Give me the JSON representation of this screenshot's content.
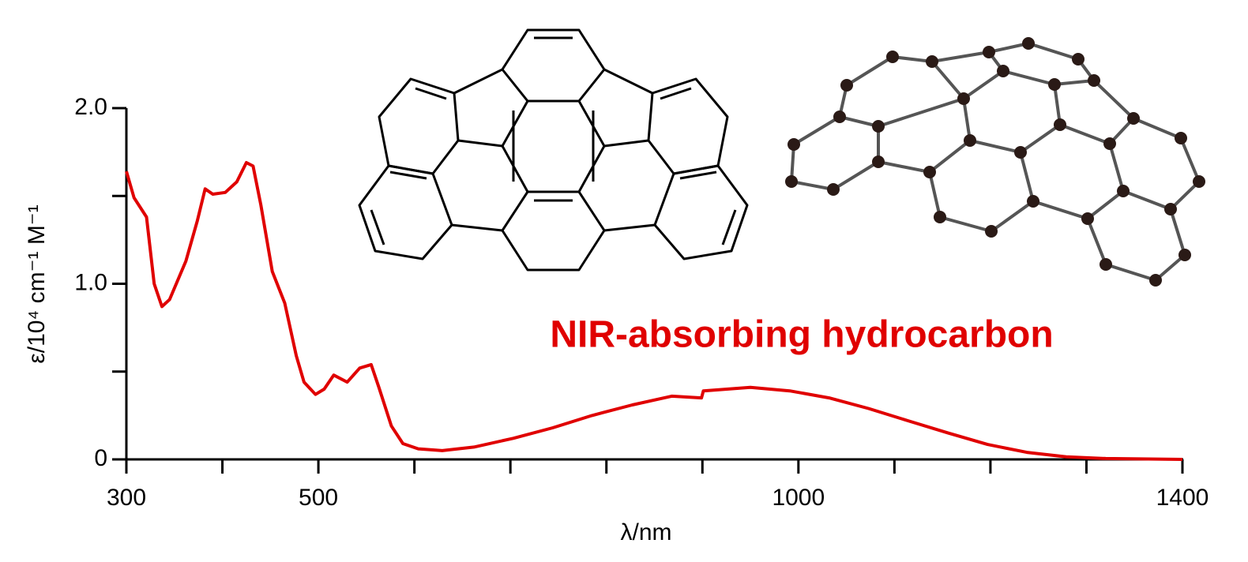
{
  "chart_data": {
    "type": "line",
    "annotation": "NIR-absorbing hydrocarbon",
    "x_label": "λ/nm",
    "y_label": "ε/10⁴ cm⁻¹ M⁻¹",
    "x": [
      300,
      308,
      321,
      329,
      337,
      345,
      362,
      374,
      382,
      390,
      403,
      415,
      425,
      432,
      440,
      452,
      465,
      477,
      485,
      497,
      506,
      516,
      530,
      543,
      555,
      563,
      576,
      588,
      604,
      629,
      662,
      703,
      744,
      785,
      827,
      868,
      899,
      901,
      950,
      991,
      1032,
      1073,
      1114,
      1156,
      1197,
      1238,
      1279,
      1320,
      1400
    ],
    "values": [
      1.64,
      1.49,
      1.38,
      1.0,
      0.87,
      0.91,
      1.13,
      1.36,
      1.54,
      1.51,
      1.52,
      1.58,
      1.69,
      1.67,
      1.45,
      1.07,
      0.89,
      0.59,
      0.44,
      0.37,
      0.4,
      0.48,
      0.44,
      0.52,
      0.54,
      0.41,
      0.19,
      0.09,
      0.06,
      0.05,
      0.07,
      0.12,
      0.18,
      0.25,
      0.31,
      0.36,
      0.35,
      0.39,
      0.41,
      0.39,
      0.35,
      0.29,
      0.22,
      0.15,
      0.085,
      0.04,
      0.015,
      0.005,
      0
    ],
    "color": "#e00000",
    "xlim": [
      300,
      1400
    ],
    "ylim": [
      0,
      2
    ],
    "xticks": [
      300,
      500,
      1000,
      1400
    ],
    "x_minor_ticks": [
      400,
      600,
      700,
      800,
      900,
      1100,
      1200,
      1300
    ],
    "yticks": [
      0,
      {
        "value": 1,
        "label": "1.0"
      },
      {
        "value": 2,
        "label": "2.0"
      }
    ],
    "y_minor_ticks": [
      0.5,
      1.5
    ]
  }
}
